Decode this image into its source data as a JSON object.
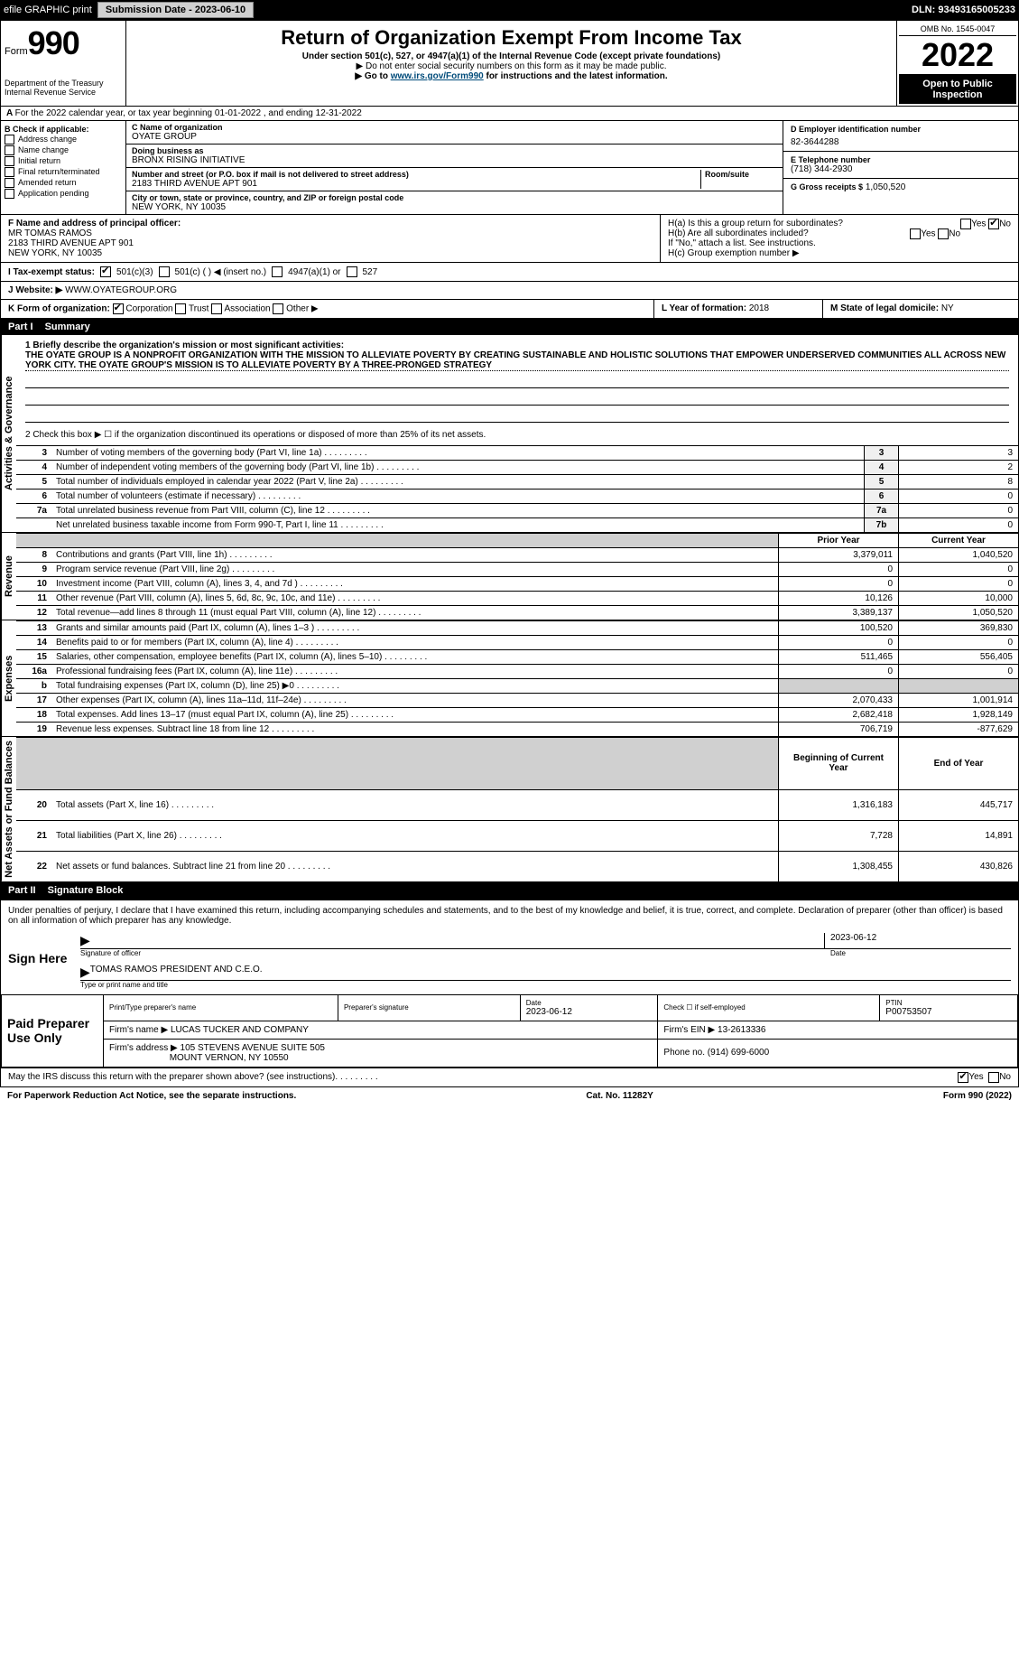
{
  "topbar": {
    "efile": "efile GRAPHIC print",
    "submission_btn": "Submission Date - 2023-06-10",
    "dln": "DLN: 93493165005233"
  },
  "header": {
    "form_word": "Form",
    "form_num": "990",
    "title": "Return of Organization Exempt From Income Tax",
    "subtitle": "Under section 501(c), 527, or 4947(a)(1) of the Internal Revenue Code (except private foundations)",
    "note1": "▶ Do not enter social security numbers on this form as it may be made public.",
    "note2_pre": "▶ Go to ",
    "note2_link": "www.irs.gov/Form990",
    "note2_post": " for instructions and the latest information.",
    "omb": "OMB No. 1545-0047",
    "year": "2022",
    "public": "Open to Public Inspection",
    "dept": "Department of the Treasury",
    "irs": "Internal Revenue Service"
  },
  "A": "For the 2022 calendar year, or tax year beginning 01-01-2022     , and ending 12-31-2022",
  "B": {
    "label": "B Check if applicable:",
    "items": [
      "Address change",
      "Name change",
      "Initial return",
      "Final return/terminated",
      "Amended return",
      "Application pending"
    ]
  },
  "C": {
    "name_lbl": "C Name of organization",
    "name": "OYATE GROUP",
    "dba_lbl": "Doing business as",
    "dba": "BRONX RISING INITIATIVE",
    "street_lbl": "Number and street (or P.O. box if mail is not delivered to street address)",
    "street": "2183 THIRD AVENUE APT 901",
    "room_lbl": "Room/suite",
    "city_lbl": "City or town, state or province, country, and ZIP or foreign postal code",
    "city": "NEW YORK, NY  10035"
  },
  "D": {
    "lbl": "D Employer identification number",
    "val": "82-3644288"
  },
  "E": {
    "lbl": "E Telephone number",
    "val": "(718) 344-2930"
  },
  "G": {
    "lbl": "G Gross receipts $",
    "val": "1,050,520"
  },
  "F": {
    "lbl": "F  Name and address of principal officer:",
    "name": "MR TOMAS RAMOS",
    "addr1": "2183 THIRD AVENUE APT 901",
    "addr2": "NEW YORK, NY  10035"
  },
  "H": {
    "a": "H(a)  Is this a group return for subordinates?",
    "b": "H(b)  Are all subordinates included?",
    "b_note": "If \"No,\" attach a list. See instructions.",
    "c": "H(c)  Group exemption number ▶",
    "yes": "Yes",
    "no": "No"
  },
  "I": {
    "lbl": "I   Tax-exempt status:",
    "o1": "501(c)(3)",
    "o2": "501(c) (    ) ◀ (insert no.)",
    "o3": "4947(a)(1) or",
    "o4": "527"
  },
  "J": {
    "lbl": "J   Website: ▶",
    "val": "WWW.OYATEGROUP.ORG"
  },
  "K": {
    "lbl": "K Form of organization:",
    "o1": "Corporation",
    "o2": "Trust",
    "o3": "Association",
    "o4": "Other ▶"
  },
  "L": {
    "lbl": "L Year of formation:",
    "val": "2018"
  },
  "M": {
    "lbl": "M State of legal domicile:",
    "val": "NY"
  },
  "part1": {
    "tab": "Part I",
    "title": "Summary"
  },
  "mission": {
    "lbl": "1  Briefly describe the organization's mission or most significant activities:",
    "text": "THE OYATE GROUP IS A NONPROFIT ORGANIZATION WITH THE MISSION TO ALLEVIATE POVERTY BY CREATING SUSTAINABLE AND HOLISTIC SOLUTIONS THAT EMPOWER UNDERSERVED COMMUNITIES ALL ACROSS NEW YORK CITY. THE OYATE GROUP'S MISSION IS TO ALLEVIATE POVERTY BY A THREE-PRONGED STRATEGY"
  },
  "line2": "2   Check this box ▶ ☐ if the organization discontinued its operations or disposed of more than 25% of its net assets.",
  "sideTabs": {
    "gov": "Activities & Governance",
    "rev": "Revenue",
    "exp": "Expenses",
    "net": "Net Assets or Fund Balances"
  },
  "govRows": [
    {
      "n": "3",
      "t": "Number of voting members of the governing body (Part VI, line 1a)",
      "b": "3",
      "v": "3"
    },
    {
      "n": "4",
      "t": "Number of independent voting members of the governing body (Part VI, line 1b)",
      "b": "4",
      "v": "2"
    },
    {
      "n": "5",
      "t": "Total number of individuals employed in calendar year 2022 (Part V, line 2a)",
      "b": "5",
      "v": "8"
    },
    {
      "n": "6",
      "t": "Total number of volunteers (estimate if necessary)",
      "b": "6",
      "v": "0"
    },
    {
      "n": "7a",
      "t": "Total unrelated business revenue from Part VIII, column (C), line 12",
      "b": "7a",
      "v": "0"
    },
    {
      "n": "",
      "t": "Net unrelated business taxable income from Form 990-T, Part I, line 11",
      "b": "7b",
      "v": "0"
    }
  ],
  "colHdr": {
    "prior": "Prior Year",
    "cur": "Current Year"
  },
  "revRows": [
    {
      "n": "8",
      "t": "Contributions and grants (Part VIII, line 1h)",
      "p": "3,379,011",
      "c": "1,040,520"
    },
    {
      "n": "9",
      "t": "Program service revenue (Part VIII, line 2g)",
      "p": "0",
      "c": "0"
    },
    {
      "n": "10",
      "t": "Investment income (Part VIII, column (A), lines 3, 4, and 7d )",
      "p": "0",
      "c": "0"
    },
    {
      "n": "11",
      "t": "Other revenue (Part VIII, column (A), lines 5, 6d, 8c, 9c, 10c, and 11e)",
      "p": "10,126",
      "c": "10,000"
    },
    {
      "n": "12",
      "t": "Total revenue—add lines 8 through 11 (must equal Part VIII, column (A), line 12)",
      "p": "3,389,137",
      "c": "1,050,520"
    }
  ],
  "expRows": [
    {
      "n": "13",
      "t": "Grants and similar amounts paid (Part IX, column (A), lines 1–3 )",
      "p": "100,520",
      "c": "369,830"
    },
    {
      "n": "14",
      "t": "Benefits paid to or for members (Part IX, column (A), line 4)",
      "p": "0",
      "c": "0"
    },
    {
      "n": "15",
      "t": "Salaries, other compensation, employee benefits (Part IX, column (A), lines 5–10)",
      "p": "511,465",
      "c": "556,405"
    },
    {
      "n": "16a",
      "t": "Professional fundraising fees (Part IX, column (A), line 11e)",
      "p": "0",
      "c": "0"
    },
    {
      "n": "b",
      "t": "Total fundraising expenses (Part IX, column (D), line 25) ▶0",
      "p": "",
      "c": "",
      "shade": true
    },
    {
      "n": "17",
      "t": "Other expenses (Part IX, column (A), lines 11a–11d, 11f–24e)",
      "p": "2,070,433",
      "c": "1,001,914"
    },
    {
      "n": "18",
      "t": "Total expenses. Add lines 13–17 (must equal Part IX, column (A), line 25)",
      "p": "2,682,418",
      "c": "1,928,149"
    },
    {
      "n": "19",
      "t": "Revenue less expenses. Subtract line 18 from line 12",
      "p": "706,719",
      "c": "-877,629"
    }
  ],
  "colHdr2": {
    "beg": "Beginning of Current Year",
    "end": "End of Year"
  },
  "netRows": [
    {
      "n": "20",
      "t": "Total assets (Part X, line 16)",
      "p": "1,316,183",
      "c": "445,717"
    },
    {
      "n": "21",
      "t": "Total liabilities (Part X, line 26)",
      "p": "7,728",
      "c": "14,891"
    },
    {
      "n": "22",
      "t": "Net assets or fund balances. Subtract line 21 from line 20",
      "p": "1,308,455",
      "c": "430,826"
    }
  ],
  "part2": {
    "tab": "Part II",
    "title": "Signature Block"
  },
  "perjury": "Under penalties of perjury, I declare that I have examined this return, including accompanying schedules and statements, and to the best of my knowledge and belief, it is true, correct, and complete. Declaration of preparer (other than officer) is based on all information of which preparer has any knowledge.",
  "sign": {
    "here": "Sign Here",
    "sig_lbl": "Signature of officer",
    "date": "2023-06-12",
    "date_lbl": "Date",
    "name": "TOMAS RAMOS  PRESIDENT AND C.E.O.",
    "name_lbl": "Type or print name and title"
  },
  "paid": {
    "lbl": "Paid Preparer Use Only",
    "h1": "Print/Type preparer's name",
    "h2": "Preparer's signature",
    "h3": "Date",
    "h3v": "2023-06-12",
    "h4": "Check ☐ if self-employed",
    "h5": "PTIN",
    "h5v": "P00753507",
    "firm_lbl": "Firm's name    ▶",
    "firm": "LUCAS TUCKER AND COMPANY",
    "ein_lbl": "Firm's EIN ▶",
    "ein": "13-2613336",
    "addr_lbl": "Firm's address ▶",
    "addr1": "105 STEVENS AVENUE SUITE 505",
    "addr2": "MOUNT VERNON, NY  10550",
    "phone_lbl": "Phone no.",
    "phone": "(914) 699-6000"
  },
  "discuss": "May the IRS discuss this return with the preparer shown above? (see instructions)",
  "footer": {
    "l": "For Paperwork Reduction Act Notice, see the separate instructions.",
    "c": "Cat. No. 11282Y",
    "r": "Form 990 (2022)"
  }
}
